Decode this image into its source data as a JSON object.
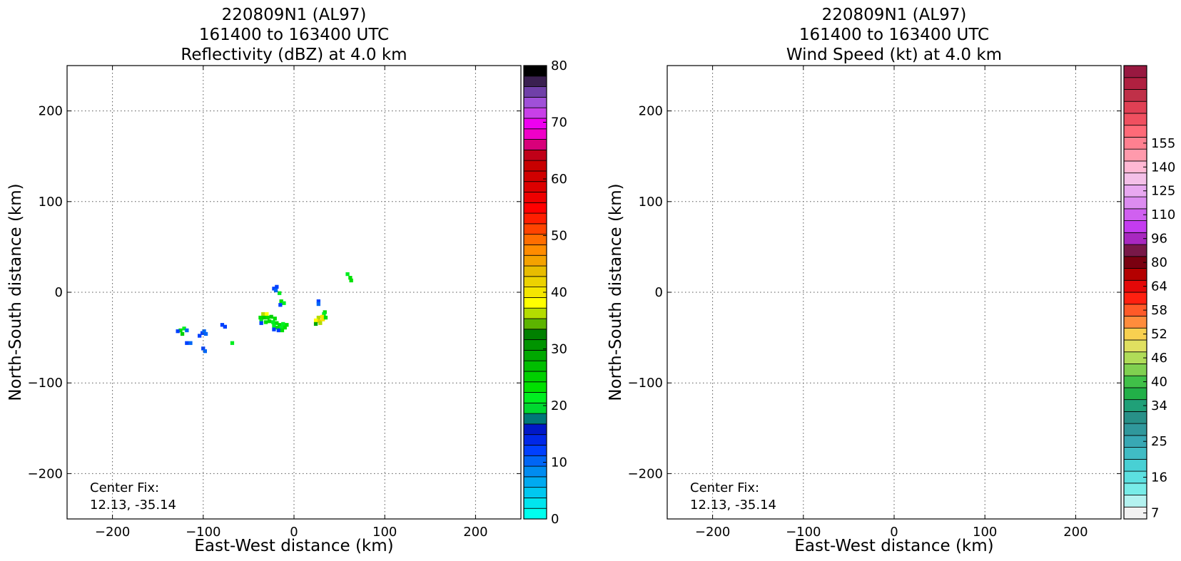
{
  "chart_data": [
    {
      "type": "heatmap",
      "title_lines": [
        "220809N1 (AL97)",
        "161400 to 163400 UTC",
        "Reflectivity (dBZ) at 4.0 km"
      ],
      "xlabel": "East-West distance (km)",
      "ylabel": "North-South distance (km)",
      "xlim": [
        -250,
        250
      ],
      "ylim": [
        -250,
        250
      ],
      "xticks": [
        -200,
        -100,
        0,
        100,
        200
      ],
      "yticks": [
        -200,
        -100,
        0,
        100,
        200
      ],
      "xtick_labels": [
        "−200",
        "−100",
        "0",
        "100",
        "200"
      ],
      "ytick_labels": [
        "−200",
        "−100",
        "0",
        "100",
        "200"
      ],
      "grid": true,
      "annotation_lines": [
        "Center Fix:",
        "12.13, -35.14"
      ],
      "colorbar": {
        "min": 0,
        "max": 80,
        "tick_values": [
          0,
          10,
          20,
          30,
          40,
          50,
          60,
          70,
          80
        ],
        "tick_labels": [
          "0",
          "10",
          "20",
          "30",
          "40",
          "50",
          "60",
          "70",
          "80"
        ],
        "colors": [
          "#00ffee",
          "#00e5ee",
          "#00c8f0",
          "#00aaf0",
          "#008cf0",
          "#0066f5",
          "#0040ff",
          "#0028e8",
          "#0018c8",
          "#007878",
          "#00d830",
          "#00ee20",
          "#00e000",
          "#00d000",
          "#00be00",
          "#00a800",
          "#009400",
          "#008000",
          "#5cb400",
          "#b4dc00",
          "#ffff00",
          "#f4e600",
          "#ecd200",
          "#e8bc00",
          "#f4a200",
          "#ff8c00",
          "#ff6e00",
          "#ff4400",
          "#ff1e00",
          "#ff0000",
          "#ee0000",
          "#dc0000",
          "#d00000",
          "#c80000",
          "#c00018",
          "#d8007a",
          "#f000c8",
          "#ee00f0",
          "#c840e8",
          "#a050d8",
          "#7040a8",
          "#3a2050",
          "#000000"
        ]
      },
      "cells": [
        {
          "x": -125,
          "y": -42,
          "dbz": 24
        },
        {
          "x": -121,
          "y": -40,
          "dbz": 22
        },
        {
          "x": -128,
          "y": -43,
          "dbz": 12
        },
        {
          "x": -118,
          "y": -42,
          "dbz": 11
        },
        {
          "x": -123,
          "y": -46,
          "dbz": 26
        },
        {
          "x": -118,
          "y": -56,
          "dbz": 12
        },
        {
          "x": -114,
          "y": -56,
          "dbz": 11
        },
        {
          "x": -101,
          "y": -45,
          "dbz": 12
        },
        {
          "x": -97,
          "y": -46,
          "dbz": 11
        },
        {
          "x": -104,
          "y": -48,
          "dbz": 12
        },
        {
          "x": -99,
          "y": -43,
          "dbz": 11
        },
        {
          "x": -100,
          "y": -62,
          "dbz": 12
        },
        {
          "x": -98,
          "y": -65,
          "dbz": 11
        },
        {
          "x": -79,
          "y": -36,
          "dbz": 12
        },
        {
          "x": -76,
          "y": -38,
          "dbz": 12
        },
        {
          "x": -68,
          "y": -56,
          "dbz": 22
        },
        {
          "x": -22,
          "y": 4,
          "dbz": 12
        },
        {
          "x": -19,
          "y": 6,
          "dbz": 12
        },
        {
          "x": -20,
          "y": 2,
          "dbz": 11
        },
        {
          "x": -16,
          "y": -1,
          "dbz": 22
        },
        {
          "x": -14,
          "y": -10,
          "dbz": 24
        },
        {
          "x": -11,
          "y": -12,
          "dbz": 22
        },
        {
          "x": -15,
          "y": -14,
          "dbz": 12
        },
        {
          "x": -34,
          "y": -24,
          "dbz": 36
        },
        {
          "x": -30,
          "y": -24,
          "dbz": 38
        },
        {
          "x": -37,
          "y": -28,
          "dbz": 24
        },
        {
          "x": -33,
          "y": -28,
          "dbz": 26
        },
        {
          "x": -29,
          "y": -28,
          "dbz": 23
        },
        {
          "x": -25,
          "y": -27,
          "dbz": 25
        },
        {
          "x": -21,
          "y": -29,
          "dbz": 24
        },
        {
          "x": -36,
          "y": -32,
          "dbz": 22
        },
        {
          "x": -31,
          "y": -33,
          "dbz": 24
        },
        {
          "x": -27,
          "y": -32,
          "dbz": 23
        },
        {
          "x": -23,
          "y": -33,
          "dbz": 22
        },
        {
          "x": -36,
          "y": -34,
          "dbz": 12
        },
        {
          "x": -19,
          "y": -34,
          "dbz": 24
        },
        {
          "x": -16,
          "y": -36,
          "dbz": 23
        },
        {
          "x": -12,
          "y": -35,
          "dbz": 22
        },
        {
          "x": -8,
          "y": -36,
          "dbz": 23
        },
        {
          "x": -22,
          "y": -37,
          "dbz": 22
        },
        {
          "x": -18,
          "y": -39,
          "dbz": 24
        },
        {
          "x": -14,
          "y": -39,
          "dbz": 22
        },
        {
          "x": -10,
          "y": -39,
          "dbz": 23
        },
        {
          "x": -17,
          "y": -42,
          "dbz": 12
        },
        {
          "x": -13,
          "y": -42,
          "dbz": 24
        },
        {
          "x": -22,
          "y": -41,
          "dbz": 12
        },
        {
          "x": 27,
          "y": -10,
          "dbz": 12
        },
        {
          "x": 27,
          "y": -13,
          "dbz": 11
        },
        {
          "x": 34,
          "y": -22,
          "dbz": 23
        },
        {
          "x": 33,
          "y": -24,
          "dbz": 22
        },
        {
          "x": 27,
          "y": -28,
          "dbz": 36
        },
        {
          "x": 31,
          "y": -27,
          "dbz": 40
        },
        {
          "x": 24,
          "y": -31,
          "dbz": 38
        },
        {
          "x": 28,
          "y": -32,
          "dbz": 42
        },
        {
          "x": 32,
          "y": -30,
          "dbz": 40
        },
        {
          "x": 29,
          "y": -34,
          "dbz": 37
        },
        {
          "x": 24,
          "y": -35,
          "dbz": 28
        },
        {
          "x": 35,
          "y": -28,
          "dbz": 24
        },
        {
          "x": 59,
          "y": 20,
          "dbz": 22
        },
        {
          "x": 62,
          "y": 16,
          "dbz": 23
        },
        {
          "x": 63,
          "y": 13,
          "dbz": 24
        }
      ]
    },
    {
      "type": "heatmap",
      "title_lines": [
        "220809N1 (AL97)",
        "161400 to 163400 UTC",
        "Wind Speed (kt) at 4.0 km"
      ],
      "xlabel": "East-West distance (km)",
      "ylabel": "North-South distance (km)",
      "xlim": [
        -250,
        250
      ],
      "ylim": [
        -250,
        250
      ],
      "xticks": [
        -200,
        -100,
        0,
        100,
        200
      ],
      "yticks": [
        -200,
        -100,
        0,
        100,
        200
      ],
      "xtick_labels": [
        "−200",
        "−100",
        "0",
        "100",
        "200"
      ],
      "ytick_labels": [
        "−200",
        "−100",
        "0",
        "100",
        "200"
      ],
      "grid": true,
      "annotation_lines": [
        "Center Fix:",
        "12.13, -35.14"
      ],
      "colorbar": {
        "tick_labels": [
          "7",
          "16",
          "25",
          "34",
          "40",
          "46",
          "52",
          "58",
          "64",
          "80",
          "96",
          "110",
          "125",
          "140",
          "155"
        ],
        "tick_bin_index": [
          0,
          3,
          6,
          9,
          11,
          13,
          15,
          17,
          19,
          21,
          23,
          25,
          27,
          29,
          31
        ],
        "colors": [
          "#f2f2f2",
          "#b4f2f0",
          "#78ece8",
          "#5ce0e0",
          "#48d0d4",
          "#40bcc4",
          "#38a8b4",
          "#30989c",
          "#289088",
          "#20a078",
          "#22b048",
          "#40c048",
          "#80d050",
          "#b0dc58",
          "#e0e060",
          "#f8d050",
          "#ff8c3c",
          "#ff5a28",
          "#ff2010",
          "#e40808",
          "#b40000",
          "#7a0010",
          "#781848",
          "#a828c0",
          "#c43cf0",
          "#d060f0",
          "#dc8cf0",
          "#e8a8f0",
          "#f4c0e8",
          "#ffb8d4",
          "#ff9aac",
          "#ff8090",
          "#ff6a78",
          "#f05060",
          "#e04054",
          "#c03048",
          "#b02040",
          "#981840"
        ]
      },
      "cells": []
    }
  ]
}
